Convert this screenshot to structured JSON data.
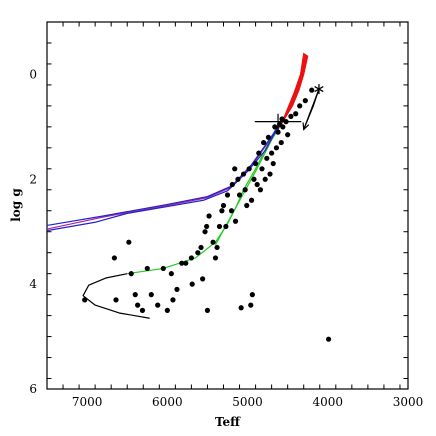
{
  "chart_data": {
    "type": "scatter",
    "xlabel": "Teff",
    "ylabel": "log g",
    "xlim": [
      7500,
      3000
    ],
    "ylim": [
      -1,
      6
    ],
    "x_ticks": [
      7000,
      6000,
      5000,
      4000,
      3000
    ],
    "x_tick_labels": [
      "7000",
      "6000",
      "5000",
      "4000",
      "3000"
    ],
    "y_ticks": [
      0,
      2,
      4,
      6
    ],
    "y_tick_labels": [
      "0",
      "2",
      "4",
      "6"
    ],
    "grid": false,
    "legend": "none",
    "colors": {
      "points": "#000000",
      "black_track": "#000000",
      "green_track": "#22cc22",
      "purple_track": "#aa2299",
      "blue_track": "#2222cc",
      "red_track": "#ee1111"
    },
    "series": [
      {
        "points": [
          [
            7030,
            4.3
          ],
          [
            6660,
            3.5
          ],
          [
            6640,
            4.3
          ],
          [
            6480,
            3.2
          ],
          [
            6450,
            3.8
          ],
          [
            6400,
            4.2
          ],
          [
            6370,
            4.4
          ],
          [
            6310,
            4.5
          ],
          [
            6250,
            3.7
          ],
          [
            6200,
            4.2
          ],
          [
            6120,
            4.4
          ],
          [
            6050,
            3.7
          ],
          [
            6000,
            4.5
          ],
          [
            5950,
            3.8
          ],
          [
            5930,
            4.3
          ],
          [
            5880,
            4.1
          ],
          [
            5820,
            3.6
          ],
          [
            5770,
            3.6
          ],
          [
            5700,
            3.5
          ],
          [
            5690,
            4.0
          ],
          [
            5620,
            3.4
          ],
          [
            5580,
            3.3
          ],
          [
            5560,
            3.9
          ],
          [
            5530,
            3.0
          ],
          [
            5510,
            2.9
          ],
          [
            5480,
            2.7
          ],
          [
            5500,
            4.5
          ],
          [
            5430,
            3.2
          ],
          [
            5400,
            3.5
          ],
          [
            5380,
            3.3
          ],
          [
            5350,
            2.9
          ],
          [
            5320,
            2.6
          ],
          [
            5300,
            2.5
          ],
          [
            5270,
            2.9
          ],
          [
            5250,
            2.3
          ],
          [
            5200,
            2.6
          ],
          [
            5190,
            2.1
          ],
          [
            5160,
            1.8
          ],
          [
            5150,
            2.8
          ],
          [
            5120,
            2.0
          ],
          [
            5100,
            2.3
          ],
          [
            5080,
            4.45
          ],
          [
            5050,
            1.9
          ],
          [
            5030,
            2.2
          ],
          [
            5010,
            2.5
          ],
          [
            4980,
            1.8
          ],
          [
            4960,
            4.4
          ],
          [
            4950,
            2.4
          ],
          [
            4940,
            4.2
          ],
          [
            4920,
            2.0
          ],
          [
            4900,
            1.7
          ],
          [
            4880,
            2.1
          ],
          [
            4860,
            1.5
          ],
          [
            4840,
            2.2
          ],
          [
            4820,
            1.8
          ],
          [
            4800,
            1.3
          ],
          [
            4780,
            2.0
          ],
          [
            4760,
            1.6
          ],
          [
            4740,
            1.2
          ],
          [
            4720,
            1.9
          ],
          [
            4700,
            1.5
          ],
          [
            4680,
            1.7
          ],
          [
            4660,
            1.0
          ],
          [
            4640,
            1.4
          ],
          [
            4620,
            1.1
          ],
          [
            4600,
            0.95
          ],
          [
            4580,
            1.3
          ],
          [
            4570,
            0.85
          ],
          [
            4560,
            1.0
          ],
          [
            4520,
            0.9
          ],
          [
            4500,
            1.15
          ],
          [
            4460,
            0.8
          ],
          [
            4400,
            0.75
          ],
          [
            4350,
            0.6
          ],
          [
            4280,
            0.5
          ],
          [
            4200,
            0.3
          ],
          [
            3990,
            5.05
          ]
        ]
      }
    ],
    "tracks": [
      {
        "color": "black",
        "points": [
          [
            6220,
            4.65
          ],
          [
            6600,
            4.55
          ],
          [
            6900,
            4.4
          ],
          [
            7050,
            4.22
          ],
          [
            6980,
            4.02
          ],
          [
            6760,
            3.88
          ],
          [
            6500,
            3.8
          ]
        ]
      },
      {
        "color": "green",
        "points": [
          [
            6500,
            3.8
          ],
          [
            6050,
            3.7
          ],
          [
            5650,
            3.5
          ],
          [
            5400,
            3.2
          ],
          [
            5250,
            2.85
          ],
          [
            5150,
            2.55
          ],
          [
            5050,
            2.2
          ],
          [
            4900,
            1.8
          ],
          [
            4750,
            1.35
          ],
          [
            4600,
            0.9
          ]
        ]
      },
      {
        "color": "green",
        "points": [
          [
            5400,
            3.25
          ],
          [
            5150,
            2.55
          ],
          [
            4900,
            1.85
          ],
          [
            4700,
            1.25
          ],
          [
            4580,
            0.95
          ]
        ]
      },
      {
        "color": "purple",
        "points": [
          [
            7500,
            2.95
          ],
          [
            6800,
            2.72
          ],
          [
            6000,
            2.5
          ],
          [
            5500,
            2.35
          ],
          [
            5200,
            2.15
          ],
          [
            4950,
            1.75
          ],
          [
            4700,
            1.2
          ],
          [
            4580,
            0.95
          ]
        ]
      },
      {
        "color": "blue",
        "points": [
          [
            7500,
            2.88
          ],
          [
            6800,
            2.7
          ],
          [
            6000,
            2.48
          ],
          [
            5500,
            2.33
          ],
          [
            5200,
            2.13
          ],
          [
            4950,
            1.72
          ],
          [
            4700,
            1.18
          ],
          [
            4600,
            0.95
          ]
        ]
      },
      {
        "color": "blue",
        "points": [
          [
            7500,
            2.98
          ],
          [
            6900,
            2.82
          ],
          [
            6500,
            2.65
          ],
          [
            6000,
            2.52
          ],
          [
            5550,
            2.4
          ],
          [
            5250,
            2.22
          ],
          [
            5000,
            1.85
          ],
          [
            4780,
            1.45
          ],
          [
            4620,
            1.0
          ]
        ]
      },
      {
        "color": "black",
        "points": [
          [
            4110,
            0.28
          ],
          [
            4180,
            0.6
          ],
          [
            4260,
            0.9
          ],
          [
            4300,
            1.05
          ]
        ]
      }
    ],
    "red_band": {
      "upper": [
        [
          4580,
          0.95
        ],
        [
          4500,
          0.65
        ],
        [
          4420,
          0.35
        ],
        [
          4340,
          0.0
        ],
        [
          4300,
          -0.4
        ]
      ],
      "lower": [
        [
          4250,
          -0.35
        ],
        [
          4300,
          0.0
        ],
        [
          4360,
          0.3
        ],
        [
          4440,
          0.6
        ],
        [
          4560,
          0.9
        ]
      ]
    },
    "errorbar": {
      "x": 4620,
      "y": 0.9,
      "x_err": 290,
      "y_err": 0.15
    },
    "star_marker": {
      "x": 4110,
      "y": 0.28
    },
    "arrow": {
      "from": [
        4110,
        0.28
      ],
      "to": [
        4300,
        1.05
      ]
    }
  }
}
